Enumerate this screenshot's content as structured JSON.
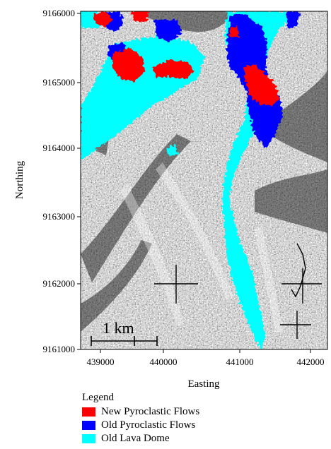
{
  "map": {
    "x_axis": {
      "title": "Easting",
      "ticks": [
        "439000",
        "440000",
        "441000",
        "442000"
      ]
    },
    "y_axis": {
      "title": "Northing",
      "ticks": [
        "9166000",
        "9165000",
        "9164000",
        "9163000",
        "9162000",
        "9161000"
      ]
    },
    "scale_bar": {
      "label": "1 km"
    },
    "legend": {
      "title": "Legend",
      "items": [
        {
          "label": "New Pyroclastic Flows",
          "color": "#ff0000",
          "icon": "red-swatch"
        },
        {
          "label": "Old Pyroclastic Flows",
          "color": "#0000ff",
          "icon": "blue-swatch"
        },
        {
          "label": "Old Lava Dome",
          "color": "#00ffff",
          "icon": "cyan-swatch"
        }
      ]
    }
  }
}
